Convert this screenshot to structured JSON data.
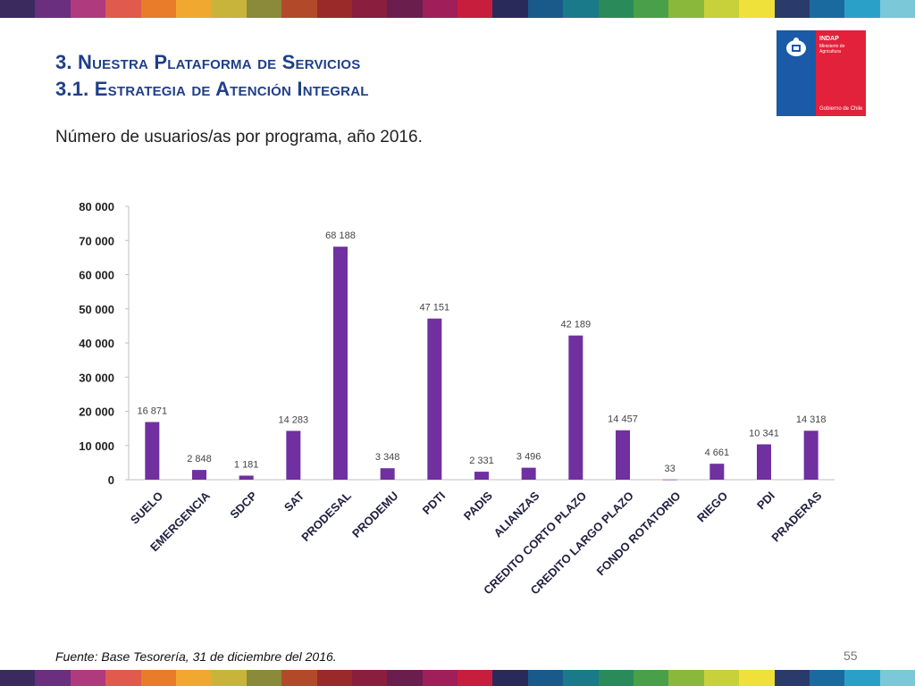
{
  "header": {
    "title_line1": "3. Nuestra Plataforma de Servicios",
    "title_line2": "3.1. Estrategia de Atención Integral",
    "subtitle": "Número de usuarios/as por programa, año 2016."
  },
  "logo": {
    "org": "INDAP",
    "ministry": "Ministerio de Agricultura",
    "government": "Gobierno de Chile"
  },
  "colors": {
    "bar": "#7030a0",
    "title": "#1f3f8a",
    "strip": [
      "#3a2a5e",
      "#6a2f7e",
      "#b03a7e",
      "#e05a4e",
      "#e87c2a",
      "#f0a830",
      "#c8b43a",
      "#8a8a3a",
      "#b24a2a",
      "#9a2a2a",
      "#8a1e3e",
      "#6a1e4e",
      "#a01e5a",
      "#c81e3e",
      "#2a2a5a",
      "#1a5a8a",
      "#1a7a8a",
      "#2a8a5a",
      "#4aa04a",
      "#8ab83a",
      "#c8d03a",
      "#f0e03a",
      "#2a3a6a",
      "#1a6aa0",
      "#2aa0c8",
      "#7ac8d8"
    ]
  },
  "footer": {
    "source": "Fuente: Base Tesorería, 31 de diciembre del 2016.",
    "page_number": "55"
  },
  "chart_data": {
    "type": "bar",
    "title": "",
    "categories": [
      "SUELO",
      "EMERGENCIA",
      "SDCP",
      "SAT",
      "PRODESAL",
      "PRODEMU",
      "PDTI",
      "PADIS",
      "ALIANZAS",
      "CREDITO CORTO PLAZO",
      "CREDITO LARGO PLAZO",
      "FONDO ROTATORIO",
      "RIEGO",
      "PDI",
      "PRADERAS"
    ],
    "values": [
      16871,
      2848,
      1181,
      14283,
      68188,
      3348,
      47151,
      2331,
      3496,
      42189,
      14457,
      33,
      4661,
      10341,
      14318
    ],
    "data_labels": [
      "16 871",
      "2 848",
      "1 181",
      "14 283",
      "68 188",
      "3 348",
      "47 151",
      "2 331",
      "3 496",
      "42 189",
      "14 457",
      "33",
      "4 661",
      "10 341",
      "14 318"
    ],
    "y_ticks": [
      0,
      10000,
      20000,
      30000,
      40000,
      50000,
      60000,
      70000,
      80000
    ],
    "y_tick_labels": [
      "0",
      "10 000",
      "20 000",
      "30 000",
      "40 000",
      "50 000",
      "60 000",
      "70 000",
      "80 000"
    ],
    "ylim": [
      0,
      80000
    ],
    "xlabel": "",
    "ylabel": "",
    "grid": false,
    "legend": "none"
  }
}
